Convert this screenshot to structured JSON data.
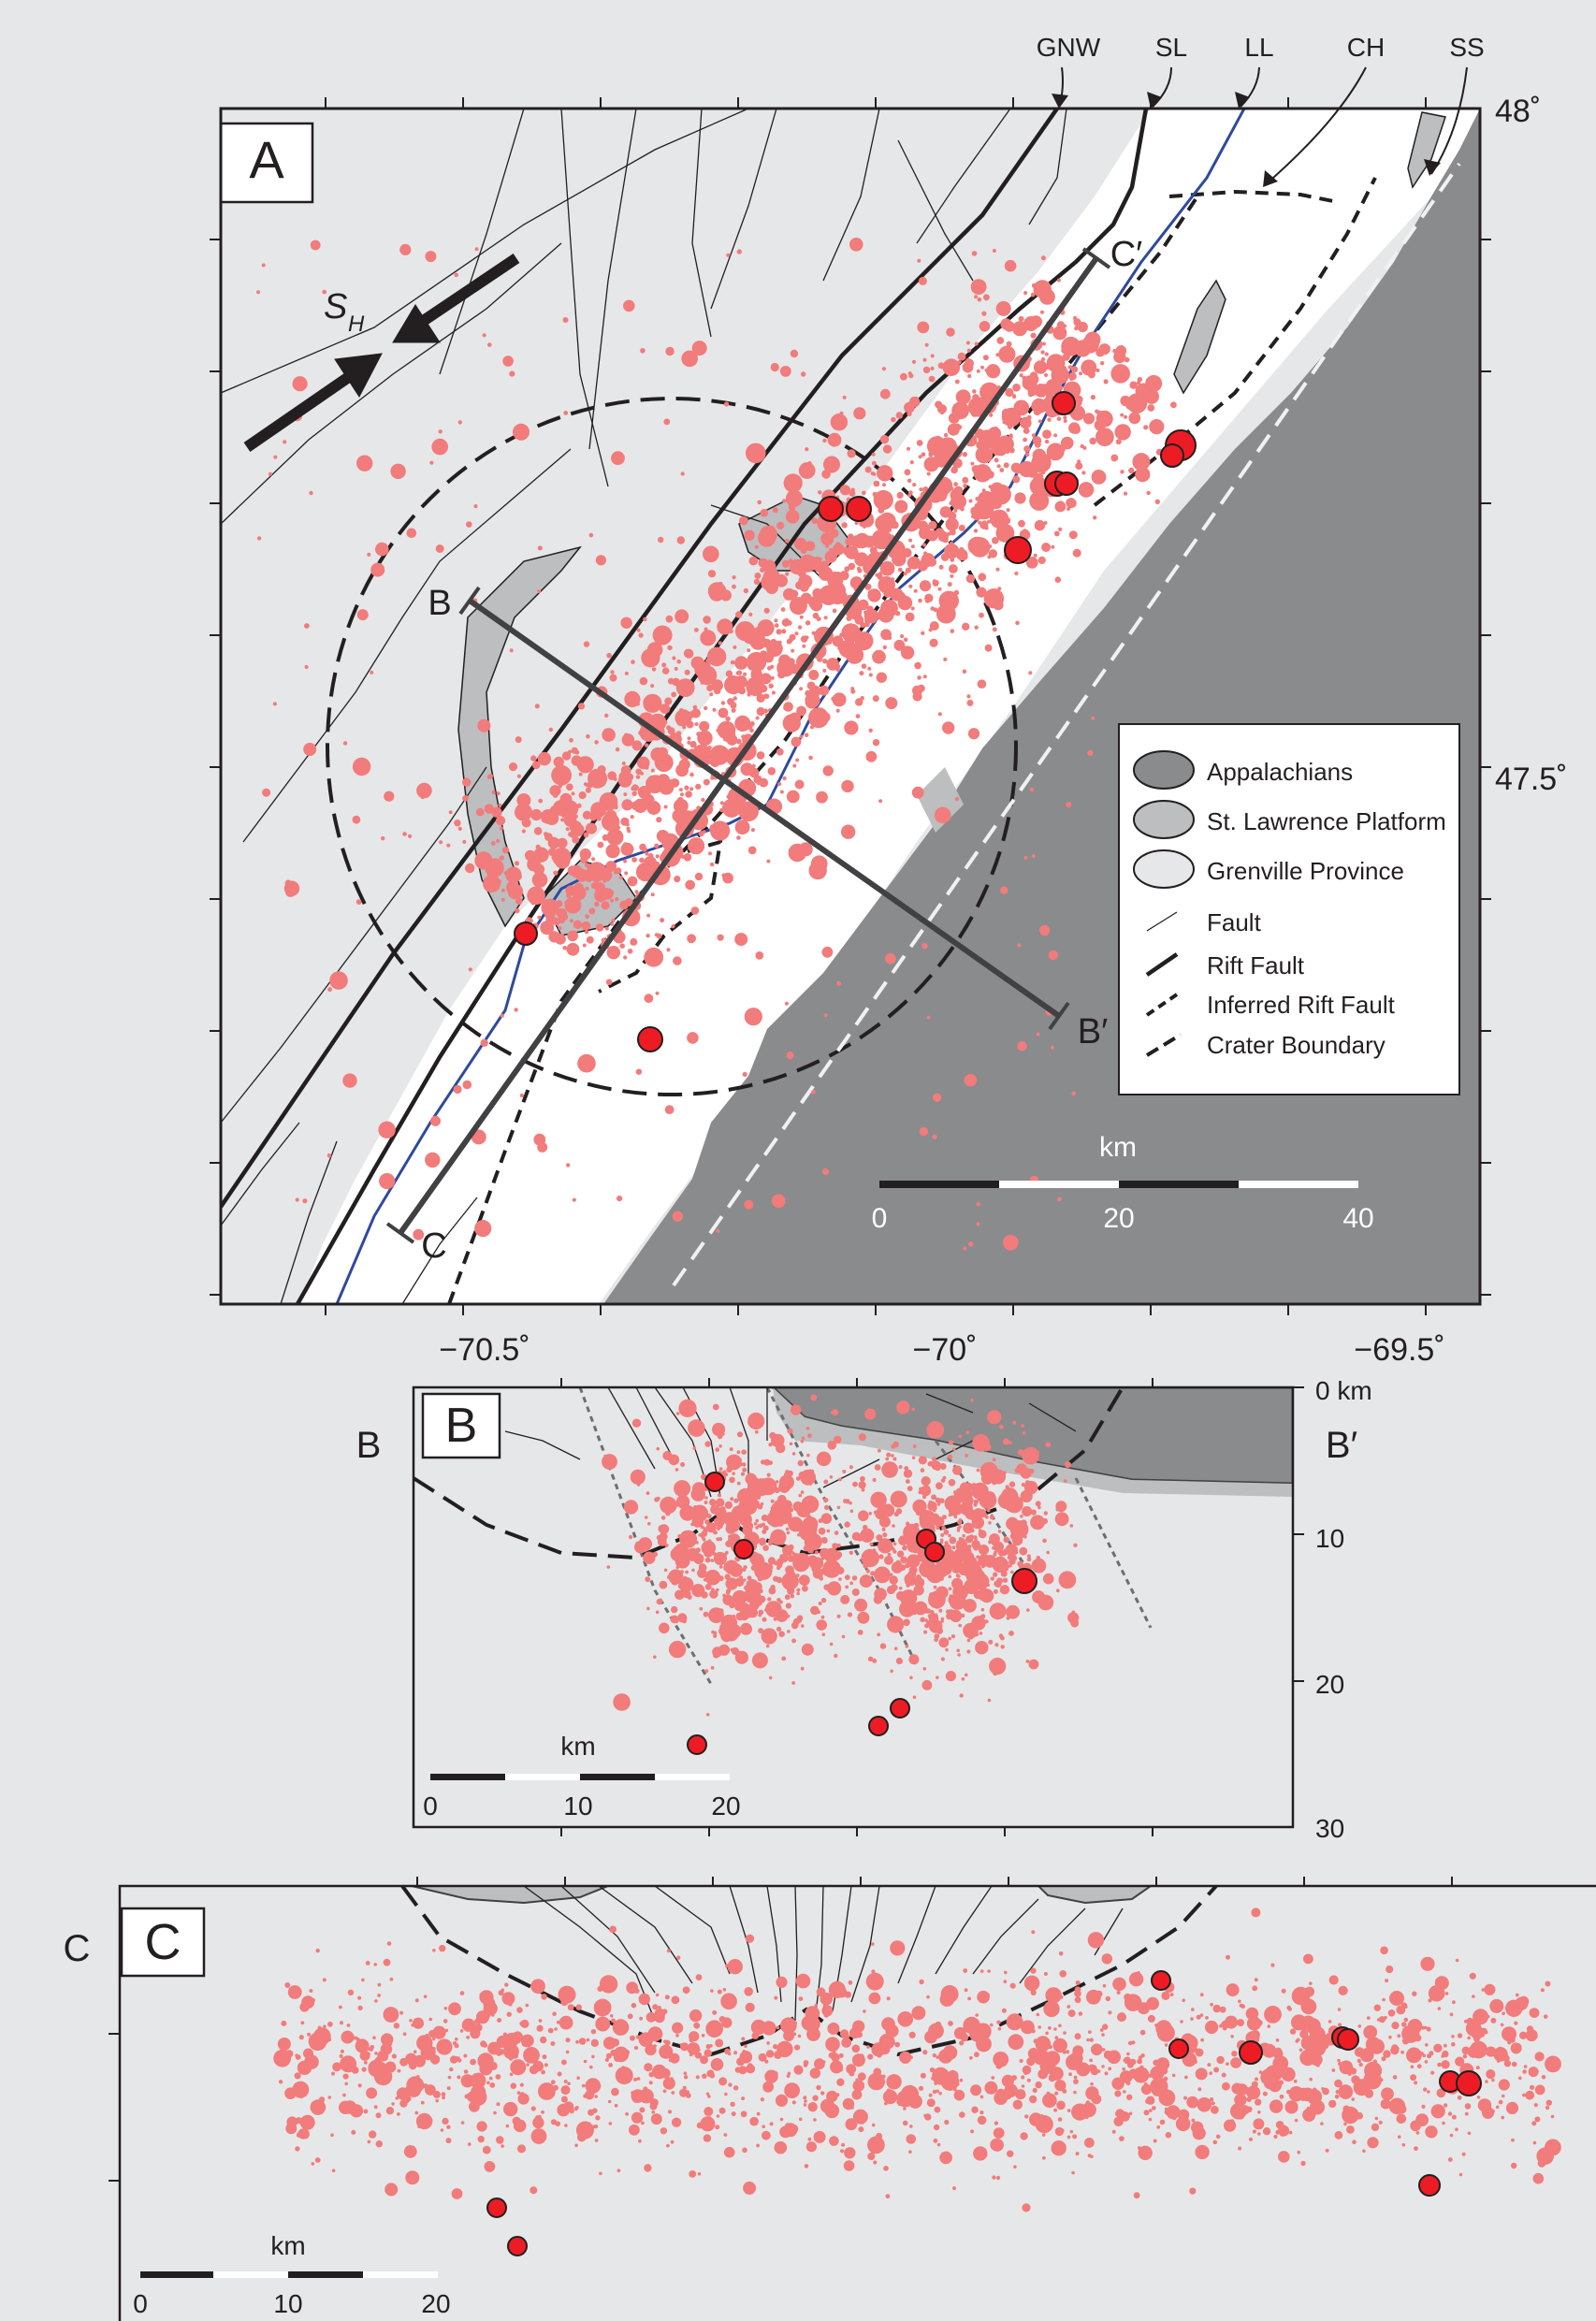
{
  "colors": {
    "background": "#e6e7e8",
    "appalachians": "#8a8b8d",
    "st_lawrence_platform": "#bcbec0",
    "grenville": "#e6e7e8",
    "water": "#ffffff",
    "quake_small": "#f27b7b",
    "quake_large": "#ed1c24",
    "river": "#2e4a9c"
  },
  "panel_a": {
    "label": "A",
    "top_labels": [
      "GNW",
      "SL",
      "LL",
      "CH",
      "SS"
    ],
    "lat_labels": [
      "48˚",
      "47.5˚"
    ],
    "lon_labels": [
      "−70.5˚",
      "−70˚",
      "−69.5˚"
    ],
    "sh_label": "S",
    "sh_sub": "H",
    "profile_b": "B",
    "profile_b_prime": "B′",
    "profile_c": "C",
    "profile_c_prime": "C′",
    "legend": {
      "appalachians": "Appalachians",
      "st_lawrence": "St. Lawrence Platform",
      "grenville": "Grenville Province",
      "fault": "Fault",
      "rift_fault": "Rift Fault",
      "inferred_rift": "Inferred Rift Fault",
      "crater": "Crater Boundary"
    },
    "scale": {
      "title": "km",
      "ticks": [
        "0",
        "20",
        "40"
      ]
    }
  },
  "panel_b": {
    "label": "B",
    "left_label": "B",
    "right_label": "B′",
    "depth_labels": [
      "0 km",
      "10",
      "20",
      "30"
    ],
    "scale": {
      "title": "km",
      "ticks": [
        "0",
        "10",
        "20"
      ]
    }
  },
  "panel_c": {
    "label": "C",
    "left_label": "C",
    "scale": {
      "title": "km",
      "ticks": [
        "0",
        "10",
        "20"
      ]
    }
  }
}
